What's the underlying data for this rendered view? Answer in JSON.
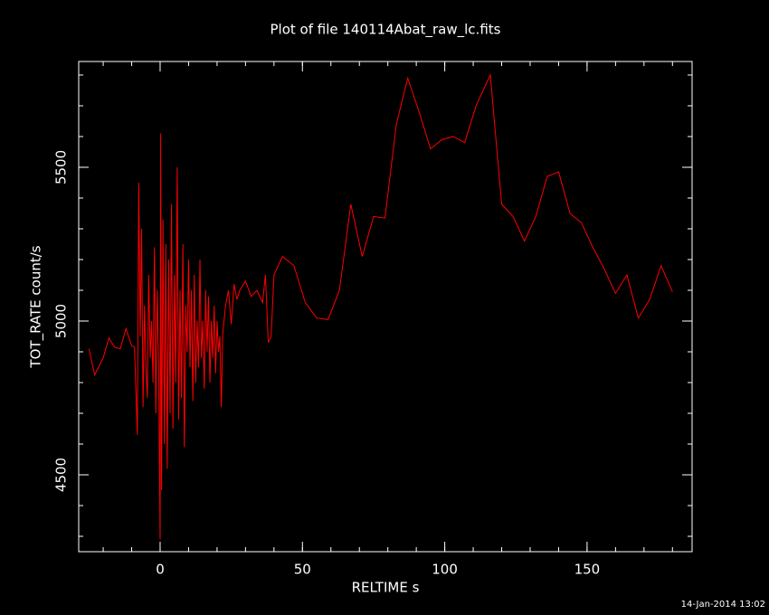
{
  "chart_data": {
    "type": "line",
    "title": "Plot of file 140114Abat_raw_lc.fits",
    "x_label": "RELTIME  s",
    "y_label": "TOT_RATE  count/s",
    "timestamp": "14-Jan-2014 13:02",
    "xlim": [
      -28.6,
      186.9
    ],
    "ylim": [
      4250,
      5844
    ],
    "xticks": [
      0,
      50,
      100,
      150
    ],
    "yticks": [
      4500,
      5000,
      5500
    ],
    "x_minor_step": 10,
    "y_minor_step": 100,
    "grid": false,
    "series": [
      {
        "name": "TOT_RATE",
        "color": "#ff0000",
        "x": [
          -25,
          -23,
          -20,
          -18,
          -16,
          -14,
          -12,
          -10,
          -9,
          -8,
          -7.5,
          -7,
          -6.5,
          -6,
          -5.5,
          -5,
          -4.5,
          -4,
          -3.5,
          -3,
          -2.5,
          -2,
          -1.5,
          -1,
          -0.5,
          0,
          0.2,
          0.5,
          1,
          1.5,
          2,
          2.5,
          3,
          3.5,
          4,
          4.5,
          5,
          5.5,
          6,
          6.5,
          7,
          7.5,
          8,
          8.5,
          9,
          9.5,
          10,
          10.5,
          11,
          11.5,
          12,
          12.5,
          13,
          13.5,
          14,
          14.5,
          15,
          15.5,
          16,
          16.5,
          17,
          17.5,
          18,
          18.5,
          19,
          19.5,
          20,
          20.5,
          21,
          21.5,
          22,
          23,
          24,
          25,
          26,
          27,
          28,
          30,
          32,
          34,
          36,
          37,
          38,
          39,
          40,
          43,
          47,
          51,
          55,
          59,
          63,
          67,
          71,
          75,
          79,
          83,
          87,
          91,
          95,
          99,
          103,
          107,
          111,
          116,
          120,
          124,
          128,
          132,
          136,
          140,
          144,
          148,
          152,
          156,
          160,
          164,
          168,
          172,
          176,
          180
        ],
        "values": [
          4910,
          4825,
          4880,
          4945,
          4915,
          4910,
          4975,
          4920,
          4915,
          4630,
          5450,
          4950,
          5300,
          4720,
          5050,
          4850,
          4750,
          5150,
          4880,
          5000,
          4800,
          5240,
          4700,
          5100,
          4850,
          4290,
          5610,
          4450,
          5330,
          4600,
          5250,
          4520,
          5200,
          4700,
          5380,
          4650,
          5150,
          4800,
          5500,
          4680,
          5100,
          4750,
          5250,
          4590,
          5050,
          4900,
          5200,
          4850,
          5100,
          4740,
          5150,
          4800,
          5000,
          4850,
          5200,
          4880,
          5000,
          4780,
          5100,
          4900,
          5080,
          4800,
          5000,
          4880,
          5050,
          4830,
          5000,
          4900,
          4950,
          4720,
          4960,
          5050,
          5100,
          4990,
          5120,
          5070,
          5100,
          5130,
          5080,
          5100,
          5060,
          5150,
          4930,
          4950,
          5150,
          5210,
          5180,
          5060,
          5010,
          5005,
          5100,
          5380,
          5210,
          5340,
          5335,
          5640,
          5790,
          5680,
          5560,
          5590,
          5600,
          5580,
          5700,
          5800,
          5380,
          5340,
          5260,
          5340,
          5470,
          5485,
          5350,
          5320,
          5240,
          5170,
          5090,
          5150,
          5010,
          5070,
          5180,
          5095
        ]
      }
    ]
  }
}
